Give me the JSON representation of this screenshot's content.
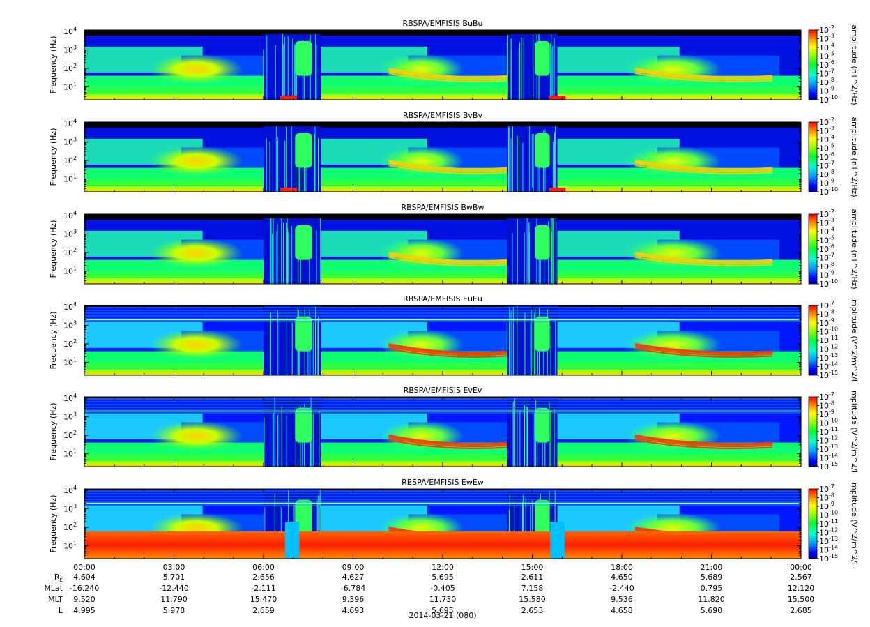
{
  "chart_data": [
    {
      "type": "heatmap",
      "title": "RBSPA/EMFISIS  BuBu",
      "ylabel": "Frequency (Hz)",
      "ylim": [
        2,
        12000
      ],
      "yscale": "log",
      "yticks": [
        {
          "base": "10",
          "exp": "4"
        },
        {
          "base": "10",
          "exp": "3"
        },
        {
          "base": "10",
          "exp": "2"
        },
        {
          "base": "10",
          "exp": "1"
        }
      ],
      "colorbar": {
        "label": "amplitude (nT^2/Hz)",
        "ticks": [
          {
            "base": "10",
            "exp": "-2"
          },
          {
            "base": "10",
            "exp": "-3"
          },
          {
            "base": "10",
            "exp": "-4"
          },
          {
            "base": "10",
            "exp": "-5"
          },
          {
            "base": "10",
            "exp": "-6"
          },
          {
            "base": "10",
            "exp": "-7"
          },
          {
            "base": "10",
            "exp": "-8"
          },
          {
            "base": "10",
            "exp": "-9"
          },
          {
            "base": "10",
            "exp": "-10"
          }
        ]
      }
    },
    {
      "type": "heatmap",
      "title": "RBSPA/EMFISIS  BvBv",
      "ylabel": "Frequency (Hz)",
      "ylim": [
        2,
        12000
      ],
      "yscale": "log",
      "yticks": [
        {
          "base": "10",
          "exp": "4"
        },
        {
          "base": "10",
          "exp": "3"
        },
        {
          "base": "10",
          "exp": "2"
        },
        {
          "base": "10",
          "exp": "1"
        }
      ],
      "colorbar": {
        "label": "amplitude (nT^2/Hz)",
        "ticks": [
          {
            "base": "10",
            "exp": "-2"
          },
          {
            "base": "10",
            "exp": "-3"
          },
          {
            "base": "10",
            "exp": "-4"
          },
          {
            "base": "10",
            "exp": "-5"
          },
          {
            "base": "10",
            "exp": "-6"
          },
          {
            "base": "10",
            "exp": "-7"
          },
          {
            "base": "10",
            "exp": "-8"
          },
          {
            "base": "10",
            "exp": "-9"
          },
          {
            "base": "10",
            "exp": "-10"
          }
        ]
      }
    },
    {
      "type": "heatmap",
      "title": "RBSPA/EMFISIS  BwBw",
      "ylabel": "Frequency (Hz)",
      "ylim": [
        2,
        12000
      ],
      "yscale": "log",
      "yticks": [
        {
          "base": "10",
          "exp": "4"
        },
        {
          "base": "10",
          "exp": "3"
        },
        {
          "base": "10",
          "exp": "2"
        },
        {
          "base": "10",
          "exp": "1"
        }
      ],
      "colorbar": {
        "label": "amplitude (nT^2/Hz)",
        "ticks": [
          {
            "base": "10",
            "exp": "-2"
          },
          {
            "base": "10",
            "exp": "-3"
          },
          {
            "base": "10",
            "exp": "-4"
          },
          {
            "base": "10",
            "exp": "-5"
          },
          {
            "base": "10",
            "exp": "-6"
          },
          {
            "base": "10",
            "exp": "-7"
          },
          {
            "base": "10",
            "exp": "-8"
          },
          {
            "base": "10",
            "exp": "-9"
          },
          {
            "base": "10",
            "exp": "-10"
          }
        ]
      }
    },
    {
      "type": "heatmap",
      "title": "RBSPA/EMFISIS  EuEu",
      "ylabel": "Frequency (Hz)",
      "ylim": [
        2,
        12000
      ],
      "yscale": "log",
      "yticks": [
        {
          "base": "10",
          "exp": "4"
        },
        {
          "base": "10",
          "exp": "3"
        },
        {
          "base": "10",
          "exp": "2"
        },
        {
          "base": "10",
          "exp": "1"
        }
      ],
      "colorbar": {
        "label": "mplitude (V^2/m^2/I",
        "ticks": [
          {
            "base": "10",
            "exp": "-7"
          },
          {
            "base": "10",
            "exp": "-8"
          },
          {
            "base": "10",
            "exp": "-9"
          },
          {
            "base": "10",
            "exp": "-10"
          },
          {
            "base": "10",
            "exp": "-11"
          },
          {
            "base": "10",
            "exp": "-12"
          },
          {
            "base": "10",
            "exp": "-13"
          },
          {
            "base": "10",
            "exp": "-14"
          },
          {
            "base": "10",
            "exp": "-15"
          }
        ]
      }
    },
    {
      "type": "heatmap",
      "title": "RBSPA/EMFISIS  EvEv",
      "ylabel": "Frequency (Hz)",
      "ylim": [
        2,
        12000
      ],
      "yscale": "log",
      "yticks": [
        {
          "base": "10",
          "exp": "4"
        },
        {
          "base": "10",
          "exp": "3"
        },
        {
          "base": "10",
          "exp": "2"
        },
        {
          "base": "10",
          "exp": "1"
        }
      ],
      "colorbar": {
        "label": "mplitude (V^2/m^2/I",
        "ticks": [
          {
            "base": "10",
            "exp": "-7"
          },
          {
            "base": "10",
            "exp": "-8"
          },
          {
            "base": "10",
            "exp": "-9"
          },
          {
            "base": "10",
            "exp": "-10"
          },
          {
            "base": "10",
            "exp": "-11"
          },
          {
            "base": "10",
            "exp": "-12"
          },
          {
            "base": "10",
            "exp": "-13"
          },
          {
            "base": "10",
            "exp": "-14"
          },
          {
            "base": "10",
            "exp": "-15"
          }
        ]
      }
    },
    {
      "type": "heatmap",
      "title": "RBSPA/EMFISIS  EwEw",
      "ylabel": "Frequency (Hz)",
      "ylim": [
        2,
        12000
      ],
      "yscale": "log",
      "yticks": [
        {
          "base": "10",
          "exp": "4"
        },
        {
          "base": "10",
          "exp": "3"
        },
        {
          "base": "10",
          "exp": "2"
        },
        {
          "base": "10",
          "exp": "1"
        }
      ],
      "colorbar": {
        "label": "mplitude (V^2/m^2/I",
        "ticks": [
          {
            "base": "10",
            "exp": "-7"
          },
          {
            "base": "10",
            "exp": "-8"
          },
          {
            "base": "10",
            "exp": "-9"
          },
          {
            "base": "10",
            "exp": "-10"
          },
          {
            "base": "10",
            "exp": "-11"
          },
          {
            "base": "10",
            "exp": "-12"
          },
          {
            "base": "10",
            "exp": "-13"
          },
          {
            "base": "10",
            "exp": "-14"
          },
          {
            "base": "10",
            "exp": "-15"
          }
        ]
      }
    }
  ],
  "time_axis": {
    "ticks": [
      "00:00",
      "03:00",
      "06:00",
      "09:00",
      "12:00",
      "15:00",
      "18:00",
      "21:00",
      "00:00"
    ],
    "rows": [
      {
        "label": "R",
        "label_sub": "E",
        "values": [
          "4.604",
          "5.701",
          "2.656",
          "4.627",
          "5.695",
          "2.611",
          "4.650",
          "5.689",
          "2.567"
        ]
      },
      {
        "label": "MLat",
        "values": [
          "-16.240",
          "-12.440",
          "-2.111",
          "-6.784",
          "-0.405",
          "7.158",
          "-2.440",
          "0.795",
          "12.120"
        ]
      },
      {
        "label": "MLT",
        "values": [
          "9.520",
          "11.790",
          "15.470",
          "9.396",
          "11.730",
          "15.580",
          "9.536",
          "11.820",
          "15.500"
        ]
      },
      {
        "label": "L",
        "values": [
          "4.995",
          "5.978",
          "2.659",
          "4.693",
          "5.695",
          "2.653",
          "4.658",
          "5.690",
          "2.685"
        ]
      }
    ],
    "date_label": "2014-03-21 (080)"
  }
}
